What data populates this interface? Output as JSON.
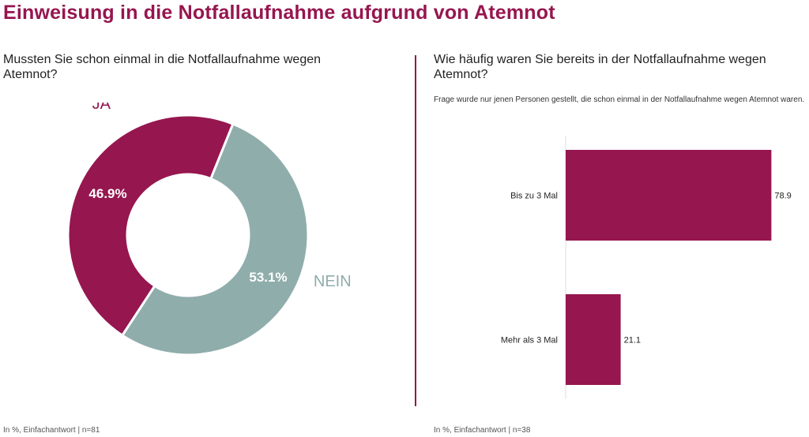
{
  "page": {
    "title": "Einweisung in die Notfallaufnahme aufgrund von Atemnot",
    "accent_color": "#96164f",
    "secondary_color": "#8fadab"
  },
  "left": {
    "question": "Mussten Sie schon einmal in die Notfallaufnahme wegen Atemnot?",
    "footnote": "In %, Einfachantwort | n=81"
  },
  "right": {
    "question": "Wie häufig waren Sie bereits in der Notfallaufnahme wegen Atemnot?",
    "subtitle": "Frage wurde nur jenen Personen gestellt, die schon einmal in der Notfallaufnahme wegen Atemnot waren.",
    "footnote": "In %, Einfachantwort | n=38"
  },
  "chart_data": [
    {
      "type": "pie",
      "donut": true,
      "title": "Mussten Sie schon einmal in die Notfallaufnahme wegen Atemnot?",
      "slices": [
        {
          "label": "JA",
          "value": 46.9,
          "value_label": "46.9%",
          "color": "#96164f"
        },
        {
          "label": "NEIN",
          "value": 53.1,
          "value_label": "53.1%",
          "color": "#8fadab"
        }
      ]
    },
    {
      "type": "bar",
      "orientation": "horizontal",
      "title": "Wie häufig waren Sie bereits in der Notfallaufnahme wegen Atemnot?",
      "categories": [
        "Bis zu 3 Mal",
        "Mehr als 3 Mal"
      ],
      "values": [
        78.9,
        21.1
      ],
      "value_labels": [
        "78.9",
        "21.1"
      ],
      "xlim": [
        0,
        100
      ],
      "color": "#96164f",
      "grid": false
    }
  ]
}
